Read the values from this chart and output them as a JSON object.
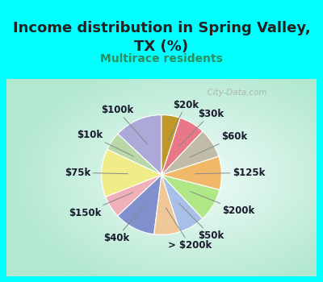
{
  "title": "Income distribution in Spring Valley,\nTX (%)",
  "subtitle": "Multirace residents",
  "bg_cyan": "#00FFFF",
  "bg_chart_edge": "#b2e8d0",
  "bg_chart_center": "#f0fcf8",
  "labels": [
    "$100k",
    "$10k",
    "$75k",
    "$150k",
    "$40k",
    "> $200k",
    "$50k",
    "$200k",
    "$125k",
    "$60k",
    "$30k",
    "$20k"
  ],
  "values": [
    13,
    5,
    13,
    6,
    11,
    7,
    7,
    9,
    9,
    8,
    7,
    5
  ],
  "colors": [
    "#aca8d8",
    "#b8d8a8",
    "#f0ec88",
    "#f0b0b8",
    "#8090cc",
    "#f0c898",
    "#a8c0e8",
    "#b0e888",
    "#f0b868",
    "#c0bca8",
    "#e87888",
    "#c09828"
  ],
  "watermark": "City-Data.com",
  "title_fontsize": 13,
  "subtitle_fontsize": 10,
  "label_fontsize": 8.5,
  "title_color": "#222222",
  "subtitle_color": "#2a9060",
  "watermark_color": "#aaaaaa"
}
